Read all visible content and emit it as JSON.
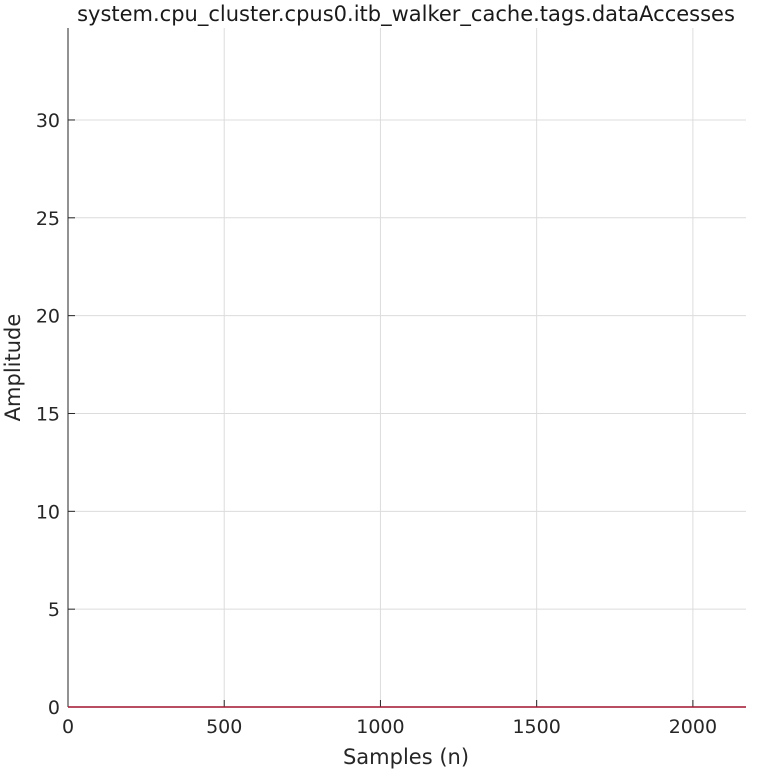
{
  "chart_data": {
    "type": "line",
    "title": "system.cpu_cluster.cpus0.itb_walker_cache.tags.dataAccesses",
    "xlabel": "Samples (n)",
    "ylabel": "Amplitude",
    "xlim": [
      0,
      2170
    ],
    "ylim": [
      0,
      34.7
    ],
    "xticks": [
      0,
      500,
      1000,
      1500,
      2000
    ],
    "yticks": [
      0,
      5,
      10,
      15,
      20,
      25,
      30
    ],
    "grid": true,
    "legend": "none",
    "line_color": "#a2142f",
    "series": [
      {
        "x": [
          0,
          2170
        ],
        "values": [
          0,
          0
        ]
      }
    ]
  }
}
